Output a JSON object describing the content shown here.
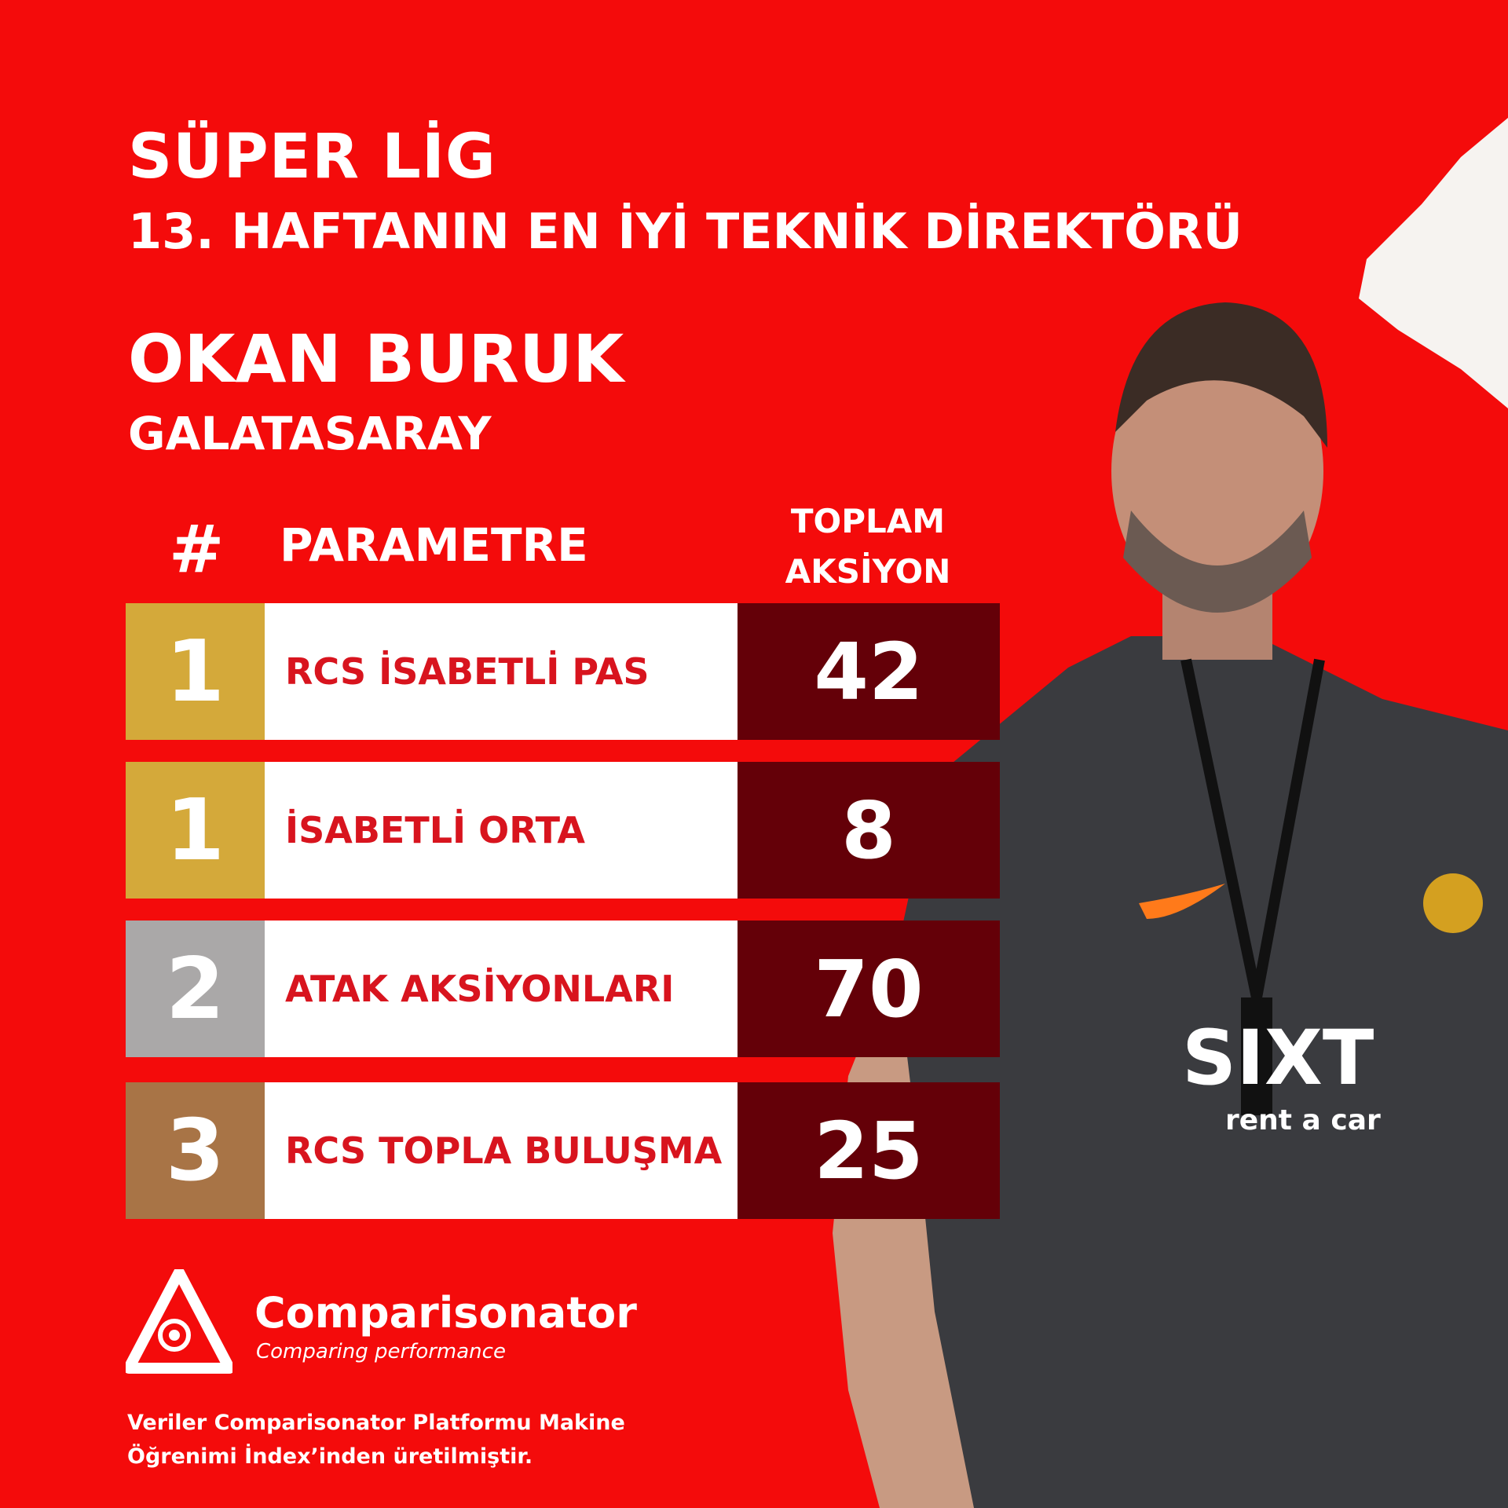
{
  "header": {
    "league": "SÜPER LİG",
    "award": "13. HAFTANIN EN İYİ TEKNİK DİREKTÖRÜ",
    "coach_name": "OKAN BURUK",
    "club": "GALATASARAY"
  },
  "table": {
    "columns": {
      "rank": "#",
      "parameter": "PARAMETRE",
      "total_line1": "TOPLAM",
      "total_line2": "AKSİYON"
    },
    "rows": [
      {
        "rank": "1",
        "parameter": "RCS İSABETLİ PAS",
        "total": "42",
        "rank_color": "#d4a93a"
      },
      {
        "rank": "1",
        "parameter": "İSABETLİ ORTA",
        "total": "8",
        "rank_color": "#d4a93a"
      },
      {
        "rank": "2",
        "parameter": "ATAK AKSİYONLARI",
        "total": "70",
        "rank_color": "#aaa8a8"
      },
      {
        "rank": "3",
        "parameter": "RCS TOPLA BULUŞMA",
        "total": "25",
        "rank_color": "#a87446"
      }
    ]
  },
  "brand": {
    "name": "Comparisonator",
    "tagline": "Comparing performance",
    "footnote_line1": "Veriler Comparisonator Platformu Makine",
    "footnote_line2": "Öğrenimi İndex’inden üretilmiştir."
  },
  "photo": {
    "sponsor": "SIXT",
    "sponsor_sub": "rent a car"
  },
  "colors": {
    "background": "#f40b0b",
    "value_bg": "#640008",
    "label_text": "#d8141e"
  }
}
